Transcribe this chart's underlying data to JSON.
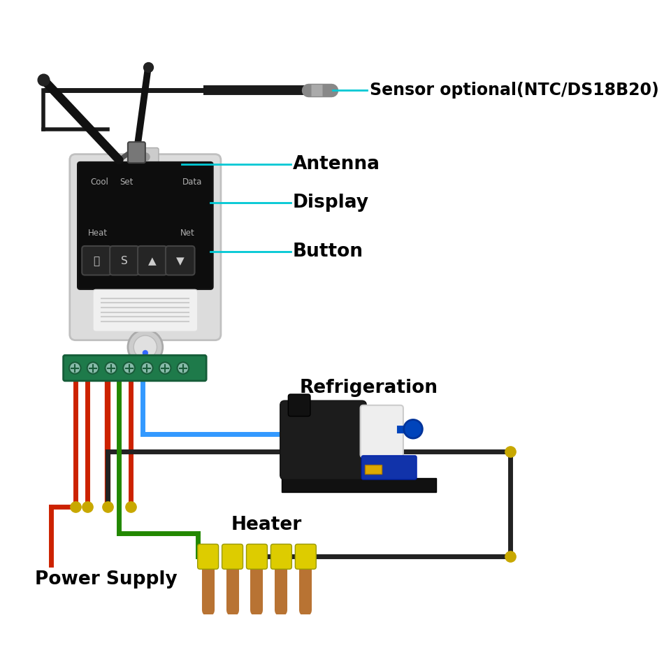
{
  "bg_color": "#ffffff",
  "label_color": "#000000",
  "cyan_color": "#00c8d4",
  "labels": {
    "sensor": "Sensor optional(NTC/DS18B20)",
    "antenna": "Antenna",
    "display": "Display",
    "button": "Button",
    "refrigeration": "Refrigeration",
    "heater": "Heater",
    "power_supply": "Power Supply"
  },
  "label_fontsize": 17,
  "label_fontsize_large": 19,
  "wire_lw": 5
}
